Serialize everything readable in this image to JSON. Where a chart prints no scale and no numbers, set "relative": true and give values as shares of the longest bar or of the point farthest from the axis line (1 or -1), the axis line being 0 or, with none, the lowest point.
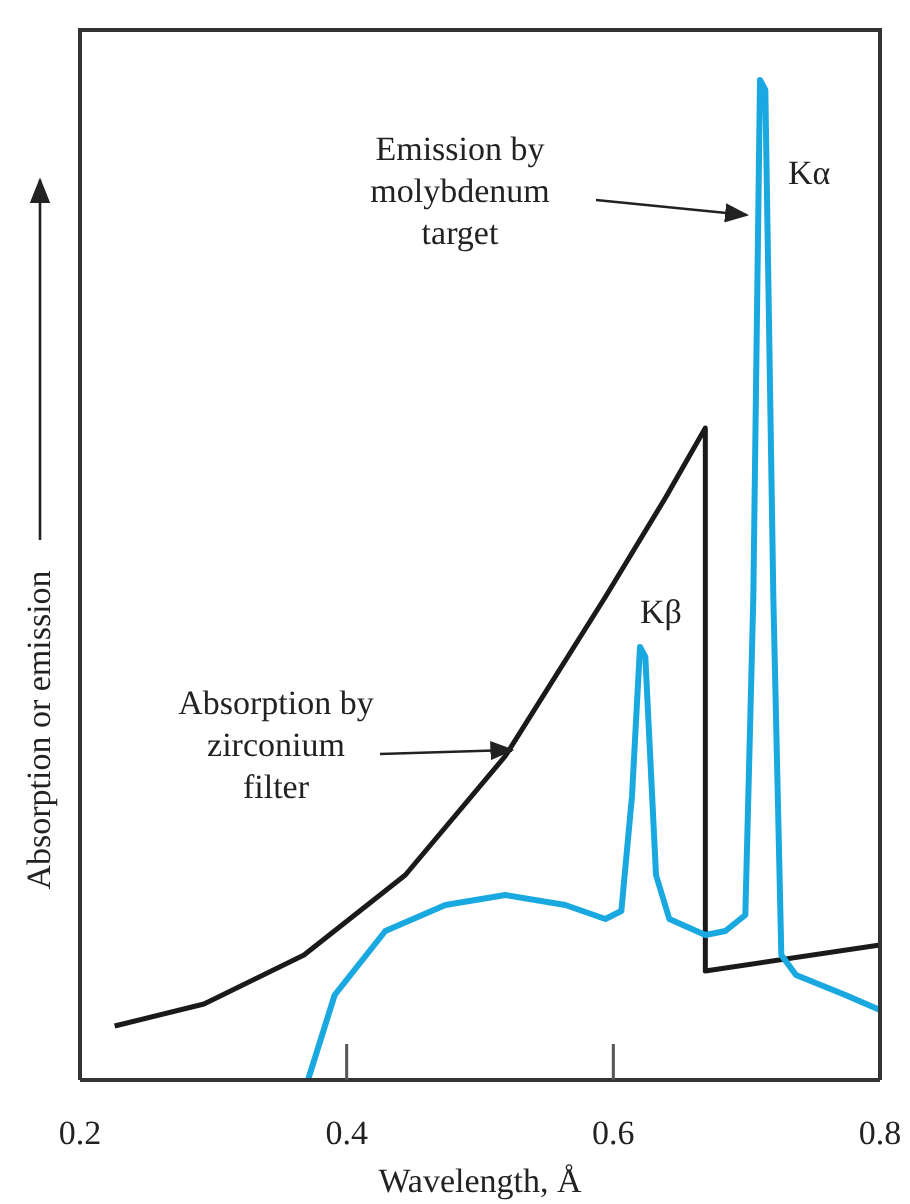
{
  "chart_data": {
    "type": "line",
    "relative": true,
    "xlabel": "Wavelength, Å",
    "ylabel": "Absorption or emission",
    "xlim": [
      0.2,
      0.8
    ],
    "xticks": [
      0.2,
      0.4,
      0.6,
      0.8
    ],
    "marker": "none",
    "line_style": "solid",
    "series": [
      {
        "color": "#1a1a1a",
        "x": [
          0.226,
          0.293,
          0.368,
          0.444,
          0.519,
          0.594,
          0.639,
          0.669,
          0.669,
          0.8
        ],
        "values": [
          0.054,
          0.076,
          0.125,
          0.205,
          0.324,
          0.483,
          0.582,
          0.652,
          0.109,
          0.135
        ]
      },
      {
        "color": "#1aa8e0",
        "x": [
          0.371,
          0.391,
          0.429,
          0.474,
          0.519,
          0.564,
          0.594,
          0.606,
          0.614,
          0.62,
          0.624,
          0.632,
          0.642,
          0.669,
          0.684,
          0.699,
          0.705,
          0.71,
          0.714,
          0.72,
          0.726,
          0.737,
          0.774,
          0.8
        ],
        "values": [
          0,
          0.085,
          0.149,
          0.175,
          0.185,
          0.175,
          0.161,
          0.169,
          0.284,
          0.433,
          0.423,
          0.205,
          0.161,
          0.145,
          0.149,
          0.165,
          0.483,
          1.0,
          0.99,
          0.483,
          0.125,
          0.105,
          0.085,
          0.07
        ]
      }
    ],
    "annotations": [
      {
        "text": "Kα",
        "x": 0.71,
        "y": 1.0
      },
      {
        "text": "Kβ",
        "x": 0.62,
        "y": 0.433
      },
      "Emission by\nmolybdenum\ntarget",
      "Absorption by\nzirconium\nfilter"
    ]
  }
}
